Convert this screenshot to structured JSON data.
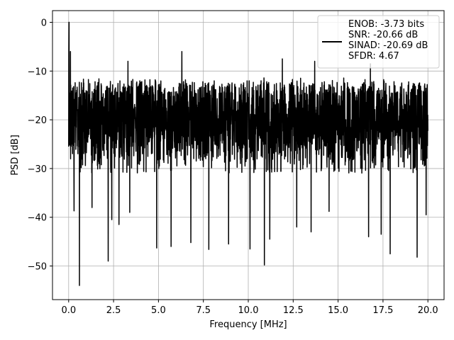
{
  "chart_data": {
    "type": "line",
    "xlabel": "Frequency [MHz]",
    "ylabel": "PSD [dB]",
    "xlim": [
      -0.9,
      20.9
    ],
    "ylim": [
      -56.9,
      2.4
    ],
    "xticks": [
      0.0,
      2.5,
      5.0,
      7.5,
      10.0,
      12.5,
      15.0,
      17.5,
      20.0
    ],
    "xtick_labels": [
      "0.0",
      "2.5",
      "5.0",
      "7.5",
      "10.0",
      "12.5",
      "15.0",
      "17.5",
      "20.0"
    ],
    "yticks": [
      0,
      -10,
      -20,
      -30,
      -40,
      -50
    ],
    "ytick_labels": [
      "0",
      "−10",
      "−20",
      "−30",
      "−40",
      "−50"
    ],
    "grid": true,
    "legend_position": "top-right",
    "series": [
      {
        "name": "ENOB: -3.73 bits\nSNR: -20.66 dB\nSINAD: -20.69 dB\nSFDR: 4.67",
        "color": "#000000",
        "noise_band": {
          "x_start": 0.0,
          "x_end": 20.0,
          "upper_envelope_db": -11,
          "lower_envelope_db": -30
        },
        "peaks": [
          {
            "x": 0.02,
            "y": 0.0
          },
          {
            "x": 0.1,
            "y": -6.0
          },
          {
            "x": 3.3,
            "y": -8.0
          },
          {
            "x": 6.3,
            "y": -6.0
          },
          {
            "x": 11.9,
            "y": -7.5
          },
          {
            "x": 13.7,
            "y": -8.0
          },
          {
            "x": 16.8,
            "y": -8.5
          }
        ],
        "dips": [
          {
            "x": 0.6,
            "y": -54.0
          },
          {
            "x": 0.3,
            "y": -38.7
          },
          {
            "x": 1.3,
            "y": -38.0
          },
          {
            "x": 2.2,
            "y": -49.0
          },
          {
            "x": 2.4,
            "y": -40.5
          },
          {
            "x": 2.8,
            "y": -41.5
          },
          {
            "x": 3.4,
            "y": -39.0
          },
          {
            "x": 4.9,
            "y": -46.3
          },
          {
            "x": 5.7,
            "y": -46.0
          },
          {
            "x": 6.8,
            "y": -45.2
          },
          {
            "x": 7.8,
            "y": -46.6
          },
          {
            "x": 8.9,
            "y": -45.5
          },
          {
            "x": 10.1,
            "y": -46.5
          },
          {
            "x": 10.9,
            "y": -49.8
          },
          {
            "x": 11.2,
            "y": -44.5
          },
          {
            "x": 12.7,
            "y": -42.0
          },
          {
            "x": 13.5,
            "y": -43.0
          },
          {
            "x": 14.5,
            "y": -38.8
          },
          {
            "x": 16.7,
            "y": -44.0
          },
          {
            "x": 17.4,
            "y": -43.5
          },
          {
            "x": 17.9,
            "y": -47.5
          },
          {
            "x": 19.4,
            "y": -48.2
          },
          {
            "x": 19.9,
            "y": -39.5
          }
        ]
      }
    ]
  }
}
